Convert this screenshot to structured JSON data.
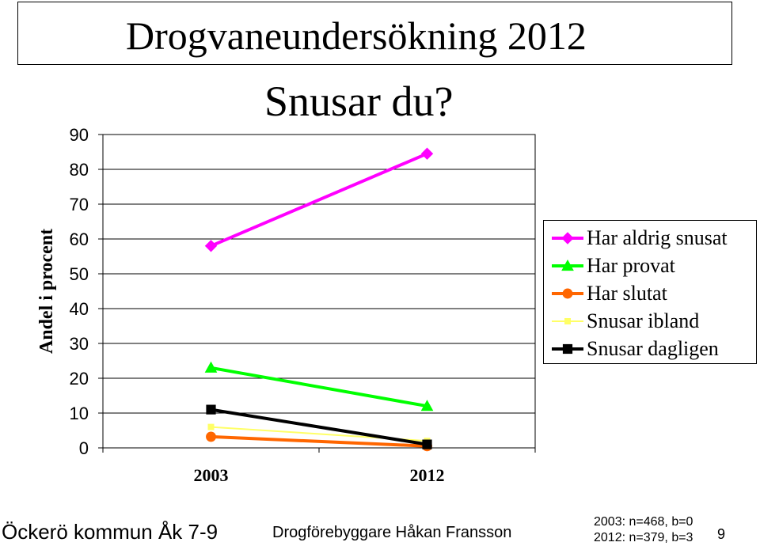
{
  "header": {
    "title": "Drogvaneundersökning 2012",
    "subtitle": "Snusar du?"
  },
  "chart_data": {
    "type": "line",
    "ylabel": "Andel i procent",
    "ylim": [
      0,
      90
    ],
    "yticks": [
      0,
      10,
      20,
      30,
      40,
      50,
      60,
      70,
      80,
      90
    ],
    "categories": [
      "2003",
      "2012"
    ],
    "grid": true,
    "legend_position": "right",
    "series": [
      {
        "name": "Har aldrig snusat",
        "values": [
          58,
          84.5
        ],
        "color": "#ff00ff",
        "marker": "diamond"
      },
      {
        "name": "Har provat",
        "values": [
          23,
          12
        ],
        "color": "#00ff00",
        "marker": "triangle"
      },
      {
        "name": "Har slutat",
        "values": [
          3.2,
          0.5
        ],
        "color": "#ff6600",
        "marker": "circle"
      },
      {
        "name": "Snusar ibland",
        "values": [
          6,
          2
        ],
        "color": "#ffff66",
        "marker": "square-small"
      },
      {
        "name": "Snusar dagligen",
        "values": [
          11,
          1
        ],
        "color": "#000000",
        "marker": "square"
      }
    ]
  },
  "footer": {
    "left": "Öckerö kommun Åk 7-9",
    "middle": "Drogförebyggare Håkan Fransson",
    "notes": [
      "2003: n=468, b=0",
      "2012: n=379, b=3"
    ],
    "page_number": "9"
  }
}
